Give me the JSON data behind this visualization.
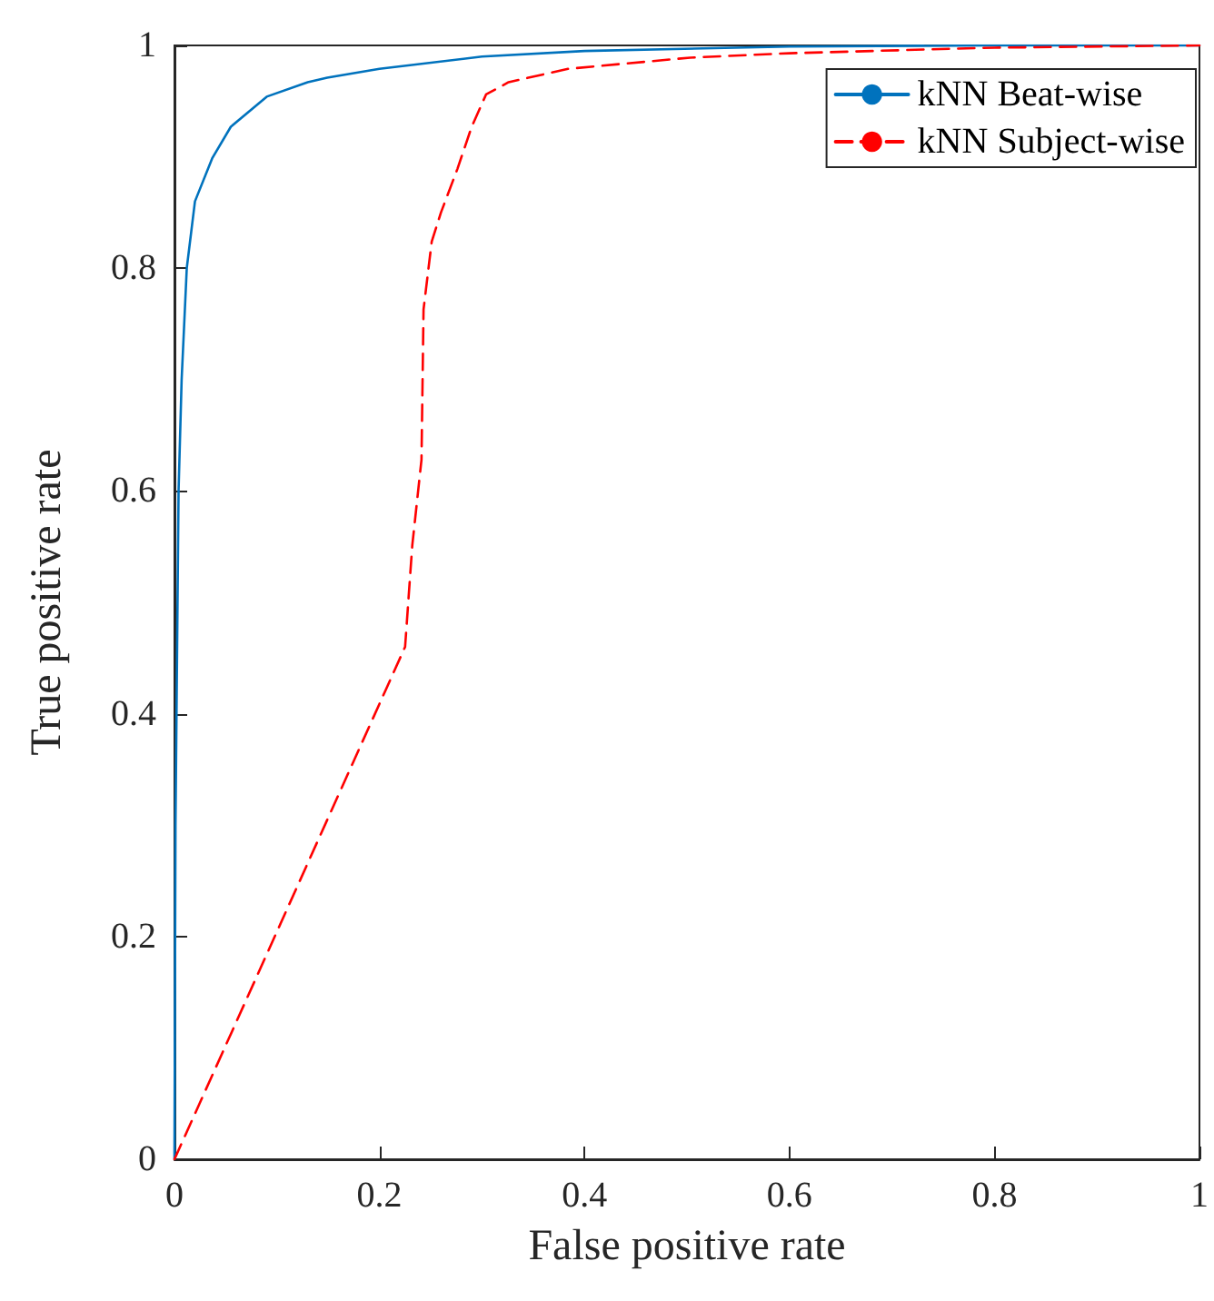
{
  "chart_data": {
    "type": "line",
    "xlabel": "False positive rate",
    "ylabel": "True positive rate",
    "xlim": [
      0,
      1
    ],
    "ylim": [
      0,
      1
    ],
    "xticks": [
      0,
      0.2,
      0.4,
      0.6,
      0.8,
      1
    ],
    "yticks": [
      0,
      0.2,
      0.4,
      0.6,
      0.8,
      1
    ],
    "grid": false,
    "legend": "top right",
    "marker": "none",
    "series": [
      {
        "name": "kNN Beat-wise",
        "color": "#0072bd",
        "line_style": "solid",
        "x": [
          0,
          0.001,
          0.004,
          0.007,
          0.012,
          0.02,
          0.037,
          0.055,
          0.09,
          0.13,
          0.149,
          0.2,
          0.3,
          0.4,
          0.6,
          0.8,
          1
        ],
        "values": [
          0,
          0.3,
          0.6,
          0.7,
          0.8,
          0.86,
          0.899,
          0.927,
          0.954,
          0.967,
          0.971,
          0.979,
          0.99,
          0.995,
          0.999,
          1,
          1
        ]
      },
      {
        "name": "kNN Subject-wise",
        "color": "#ff0000",
        "line_style": "dashed",
        "x": [
          0,
          0.225,
          0.232,
          0.241,
          0.243,
          0.251,
          0.26,
          0.276,
          0.29,
          0.304,
          0.326,
          0.384,
          0.503,
          0.6,
          0.8,
          1
        ],
        "values": [
          0,
          0.46,
          0.551,
          0.628,
          0.763,
          0.824,
          0.85,
          0.889,
          0.927,
          0.956,
          0.967,
          0.979,
          0.989,
          0.993,
          0.998,
          1
        ]
      }
    ]
  }
}
